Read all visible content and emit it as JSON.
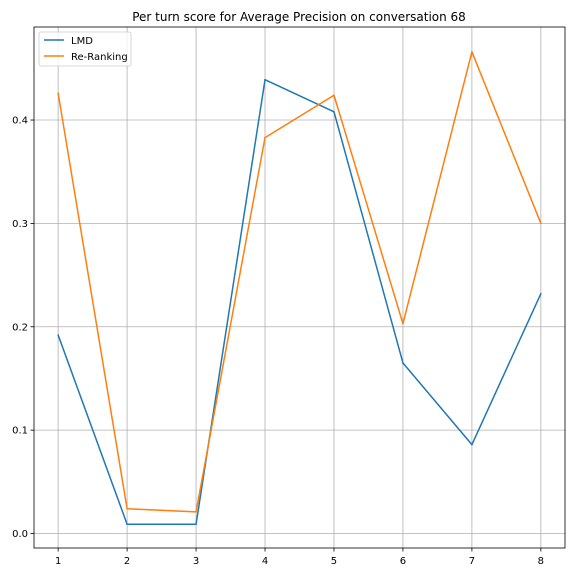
{
  "chart_data": {
    "type": "line",
    "title": "Per turn score for Average Precision on conversation 68",
    "xlabel": "",
    "ylabel": "",
    "x": [
      1,
      2,
      3,
      4,
      5,
      6,
      7,
      8
    ],
    "x_ticks": [
      "1",
      "2",
      "3",
      "4",
      "5",
      "6",
      "7",
      "8"
    ],
    "y_ticks": [
      "0.0",
      "0.1",
      "0.2",
      "0.3",
      "0.4"
    ],
    "xlim": [
      0.65,
      8.35
    ],
    "ylim": [
      -0.014,
      0.49
    ],
    "grid": true,
    "legend_position": "upper-left",
    "series": [
      {
        "name": "LMD",
        "color": "#1f77b4",
        "values": [
          0.192,
          0.009,
          0.009,
          0.439,
          0.408,
          0.165,
          0.086,
          0.232
        ]
      },
      {
        "name": "Re-Ranking",
        "color": "#ff7f0e",
        "values": [
          0.426,
          0.024,
          0.021,
          0.383,
          0.424,
          0.203,
          0.466,
          0.3
        ]
      }
    ]
  }
}
